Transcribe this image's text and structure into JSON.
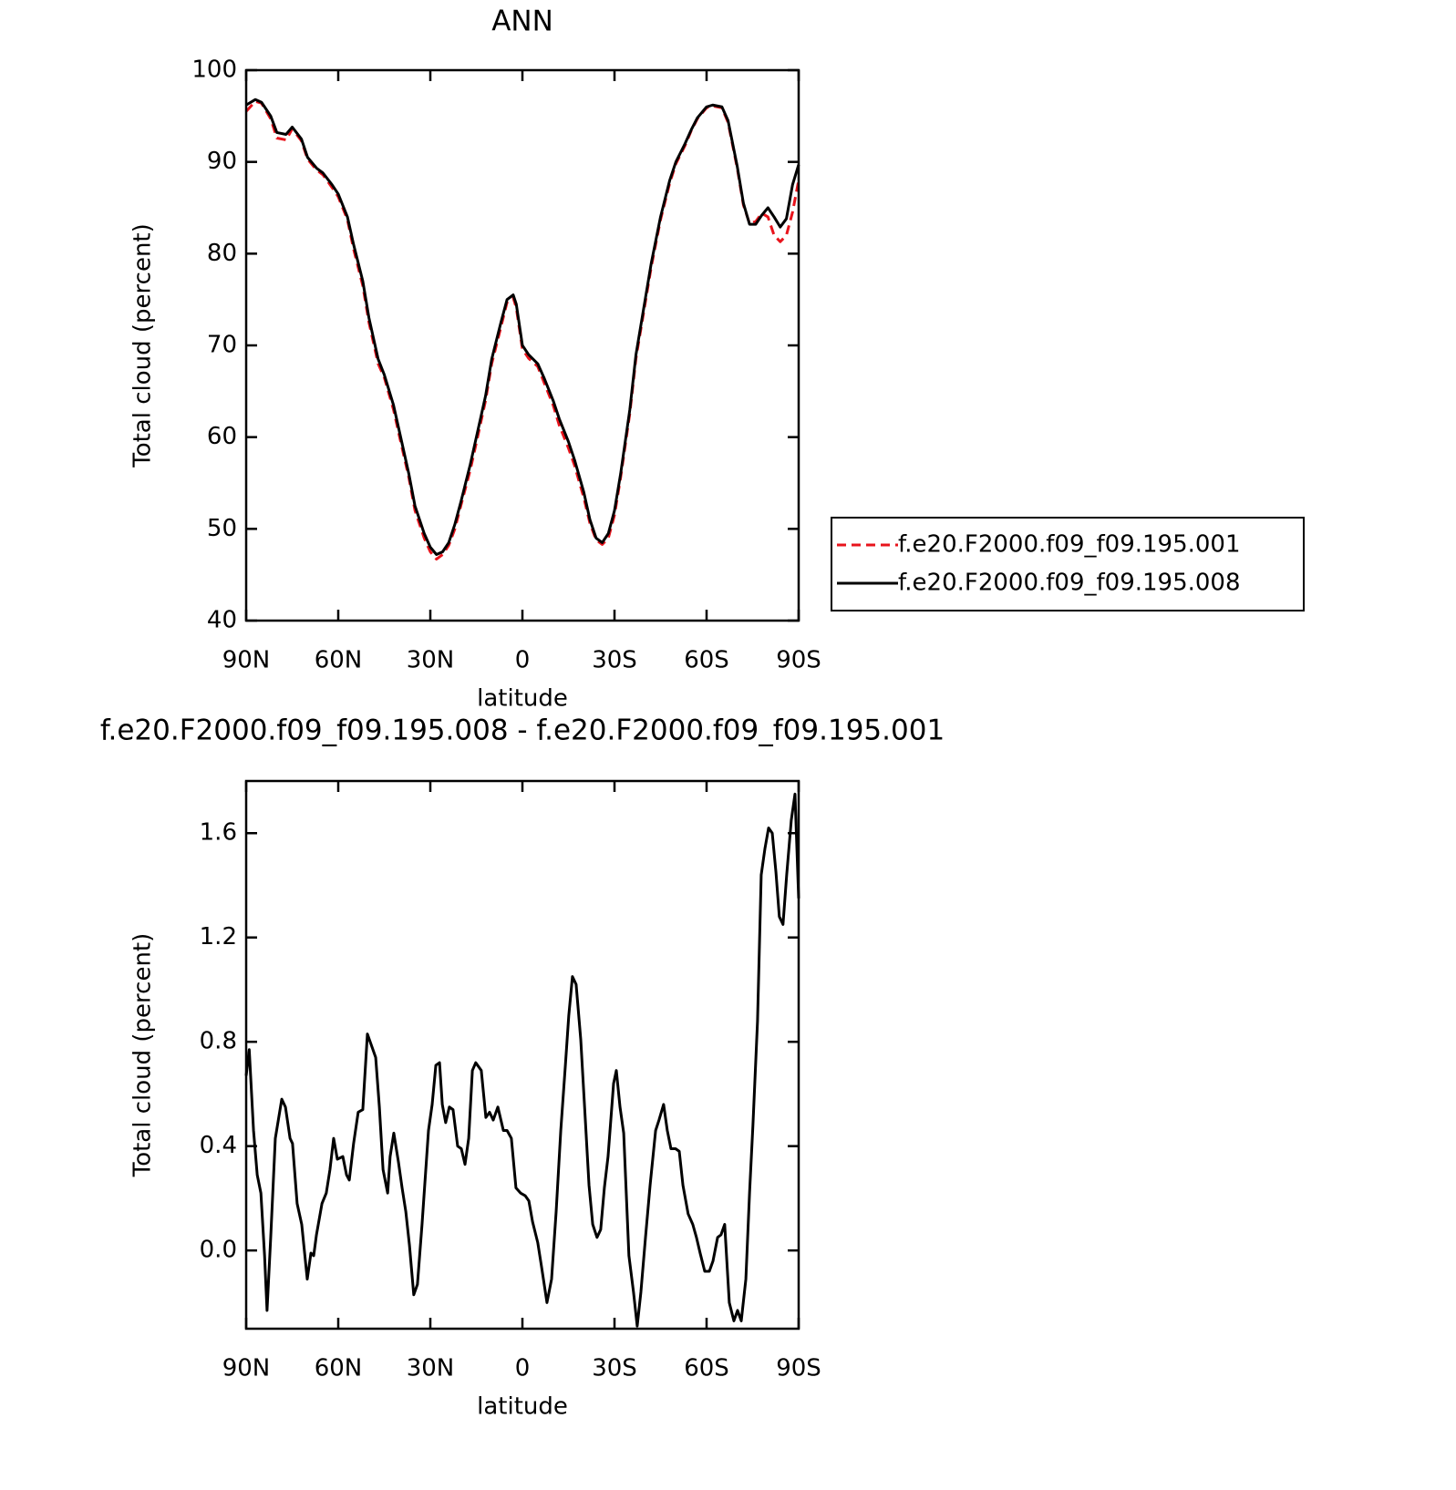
{
  "chart_data": [
    {
      "type": "line",
      "title": "ANN",
      "x_label": "latitude",
      "y_label": "Total cloud (percent)",
      "xlim": [
        90,
        -90
      ],
      "ylim": [
        40,
        100
      ],
      "xticks": [
        {
          "value": 90,
          "label": "90N"
        },
        {
          "value": 60,
          "label": "60N"
        },
        {
          "value": 30,
          "label": "30N"
        },
        0,
        {
          "value": -30,
          "label": "30S"
        },
        {
          "value": -60,
          "label": "60S"
        },
        {
          "value": -90,
          "label": "90S"
        }
      ],
      "yticks": [
        40,
        50,
        60,
        70,
        80,
        90,
        100
      ],
      "legend": "right",
      "x": [
        90,
        87,
        85,
        82,
        80,
        77,
        75,
        72,
        70,
        67,
        65,
        62,
        60,
        57,
        55,
        52,
        50,
        47,
        45,
        42,
        40,
        37,
        35,
        32,
        30,
        28,
        26,
        24,
        22,
        20,
        17,
        15,
        12,
        10,
        7,
        5,
        3,
        2,
        0,
        -2,
        -5,
        -7,
        -10,
        -12,
        -15,
        -17,
        -20,
        -22,
        -24,
        -26,
        -28,
        -30,
        -32,
        -35,
        -37,
        -40,
        -42,
        -45,
        -48,
        -50,
        -53,
        -55,
        -57,
        -60,
        -62,
        -65,
        -67,
        -70,
        -72,
        -74,
        -76,
        -78,
        -80,
        -82,
        -84,
        -86,
        -88,
        -90
      ],
      "series": [
        {
          "name": "f.e20.F2000.f09_f09.195.001",
          "color": "#e8141c",
          "dashed": true,
          "values": [
            95.5,
            96.6,
            96.4,
            94.7,
            92.6,
            92.4,
            93.6,
            92.3,
            90.3,
            89.1,
            88.6,
            87.2,
            86.2,
            83.7,
            80.5,
            76.5,
            72.5,
            68,
            66.5,
            63,
            60,
            55.6,
            52,
            49,
            47.5,
            46.7,
            47.2,
            48.2,
            50,
            52.6,
            56.4,
            59.4,
            64,
            68,
            72,
            74.7,
            75.2,
            74.1,
            69.6,
            68.6,
            67.7,
            66,
            63.5,
            61.3,
            58.8,
            56.9,
            53.4,
            50.6,
            48.8,
            48.3,
            49,
            51.5,
            55.6,
            62.6,
            68.6,
            74.6,
            78.6,
            83.7,
            87.7,
            89.8,
            91.8,
            93.4,
            94.7,
            95.9,
            96.1,
            95.9,
            94.3,
            89.3,
            85.3,
            83.3,
            83.5,
            84.4,
            84,
            82,
            81.3,
            82,
            84.5,
            88
          ]
        },
        {
          "name": "f.e20.F2000.f09_f09.195.008",
          "color": "#000000",
          "dashed": false,
          "values": [
            96.2,
            96.8,
            96.5,
            95,
            93.2,
            93,
            93.8,
            92.5,
            90.5,
            89.3,
            88.8,
            87.5,
            86.5,
            84,
            81,
            77,
            73,
            68.5,
            66.8,
            63.5,
            60.5,
            56,
            52.5,
            49.5,
            48,
            47.2,
            47.5,
            48.5,
            50.5,
            53,
            57,
            60,
            64.5,
            68.5,
            72.5,
            75,
            75.5,
            74.5,
            70,
            69,
            68,
            66.5,
            64,
            62,
            59.5,
            57.5,
            54,
            51,
            49,
            48.5,
            49.5,
            52,
            56,
            63,
            69,
            75,
            79,
            84,
            88,
            90,
            92,
            93.5,
            94.8,
            96,
            96.2,
            96,
            94.5,
            89.5,
            85.5,
            83.2,
            83.2,
            84.2,
            85,
            84,
            82.9,
            83.8,
            87.5,
            89.7
          ]
        }
      ]
    },
    {
      "type": "line",
      "title": "f.e20.F2000.f09_f09.195.008 - f.e20.F2000.f09_f09.195.001",
      "x_label": "latitude",
      "y_label": "Total cloud (percent)",
      "xlim": [
        90,
        -90
      ],
      "ylim": [
        -0.3,
        1.8
      ],
      "xticks": [
        {
          "value": 90,
          "label": "90N"
        },
        {
          "value": 60,
          "label": "60N"
        },
        {
          "value": 30,
          "label": "30N"
        },
        0,
        {
          "value": -30,
          "label": "30S"
        },
        {
          "value": -60,
          "label": "60S"
        },
        {
          "value": -90,
          "label": "90S"
        }
      ],
      "yticks": [
        {
          "value": 0,
          "label": "0.0"
        },
        0.4,
        0.8,
        1.2,
        1.6
      ],
      "x": [
        90,
        89,
        87.6,
        86.4,
        85.2,
        84,
        83.2,
        82,
        80.5,
        78.4,
        77.2,
        75.7,
        74.9,
        73.4,
        71.9,
        70.1,
        68.9,
        68,
        67.1,
        65.3,
        63.9,
        62.7,
        61.5,
        60.3,
        58.5,
        57.3,
        56.4,
        55,
        53.5,
        52,
        50.5,
        49,
        47.8,
        46.6,
        45.4,
        43.9,
        43.1,
        41.9,
        40.4,
        39.2,
        38,
        36.8,
        35.4,
        34.2,
        32.7,
        30.6,
        29.4,
        28.2,
        27,
        26.1,
        25,
        23.8,
        22.6,
        21.1,
        19.9,
        18.7,
        17.5,
        16.3,
        15.2,
        13.4,
        11.9,
        10.7,
        9.5,
        8,
        6.2,
        5,
        3.6,
        2.1,
        0.6,
        -0.9,
        -2.1,
        -3.3,
        -5,
        -6.2,
        -8,
        -9.5,
        -11,
        -12.5,
        -14,
        -15.1,
        -16.3,
        -17.5,
        -19,
        -20.5,
        -21.7,
        -22.9,
        -24.3,
        -25.5,
        -26.7,
        -27.9,
        -29.7,
        -30.6,
        -31.8,
        -33,
        -34.7,
        -36.2,
        -37.4,
        -38.6,
        -40.1,
        -41.6,
        -43.4,
        -44.5,
        -46,
        -47.2,
        -48.4,
        -49.9,
        -51.1,
        -52.3,
        -54,
        -55.5,
        -56.7,
        -57.9,
        -59.4,
        -60.9,
        -62.1,
        -63.6,
        -64.7,
        -65.9,
        -67.4,
        -68.9,
        -70.1,
        -71.3,
        -72.8,
        -74,
        -75.1,
        -76.6,
        -77.8,
        -79,
        -80.2,
        -81.4,
        -82.6,
        -83.7,
        -84.9,
        -86.1,
        -87.6,
        -88.8,
        -90
      ],
      "series": [
        {
          "color": "#000000",
          "dashed": false,
          "values": [
            0.67,
            0.77,
            0.46,
            0.29,
            0.22,
            -0.02,
            -0.23,
            0.05,
            0.43,
            0.58,
            0.55,
            0.43,
            0.41,
            0.18,
            0.1,
            -0.11,
            -0.01,
            -0.02,
            0.06,
            0.18,
            0.22,
            0.31,
            0.43,
            0.35,
            0.36,
            0.29,
            0.27,
            0.41,
            0.53,
            0.54,
            0.83,
            0.78,
            0.74,
            0.55,
            0.31,
            0.22,
            0.36,
            0.45,
            0.34,
            0.24,
            0.15,
            0.02,
            -0.17,
            -0.13,
            0.1,
            0.46,
            0.56,
            0.71,
            0.72,
            0.56,
            0.49,
            0.55,
            0.54,
            0.4,
            0.39,
            0.33,
            0.43,
            0.69,
            0.72,
            0.69,
            0.51,
            0.53,
            0.5,
            0.55,
            0.46,
            0.46,
            0.43,
            0.24,
            0.22,
            0.21,
            0.19,
            0.11,
            0.03,
            -0.06,
            -0.2,
            -0.11,
            0.15,
            0.46,
            0.71,
            0.9,
            1.05,
            1.02,
            0.81,
            0.5,
            0.25,
            0.1,
            0.05,
            0.08,
            0.24,
            0.36,
            0.64,
            0.69,
            0.55,
            0.45,
            -0.02,
            -0.16,
            -0.29,
            -0.16,
            0.05,
            0.25,
            0.46,
            0.5,
            0.56,
            0.46,
            0.39,
            0.39,
            0.38,
            0.25,
            0.14,
            0.1,
            0.05,
            -0.01,
            -0.08,
            -0.08,
            -0.04,
            0.05,
            0.06,
            0.1,
            -0.2,
            -0.27,
            -0.23,
            -0.27,
            -0.11,
            0.22,
            0.48,
            0.88,
            1.44,
            1.54,
            1.62,
            1.6,
            1.45,
            1.28,
            1.25,
            1.44,
            1.65,
            1.75,
            1.35
          ]
        }
      ]
    }
  ]
}
